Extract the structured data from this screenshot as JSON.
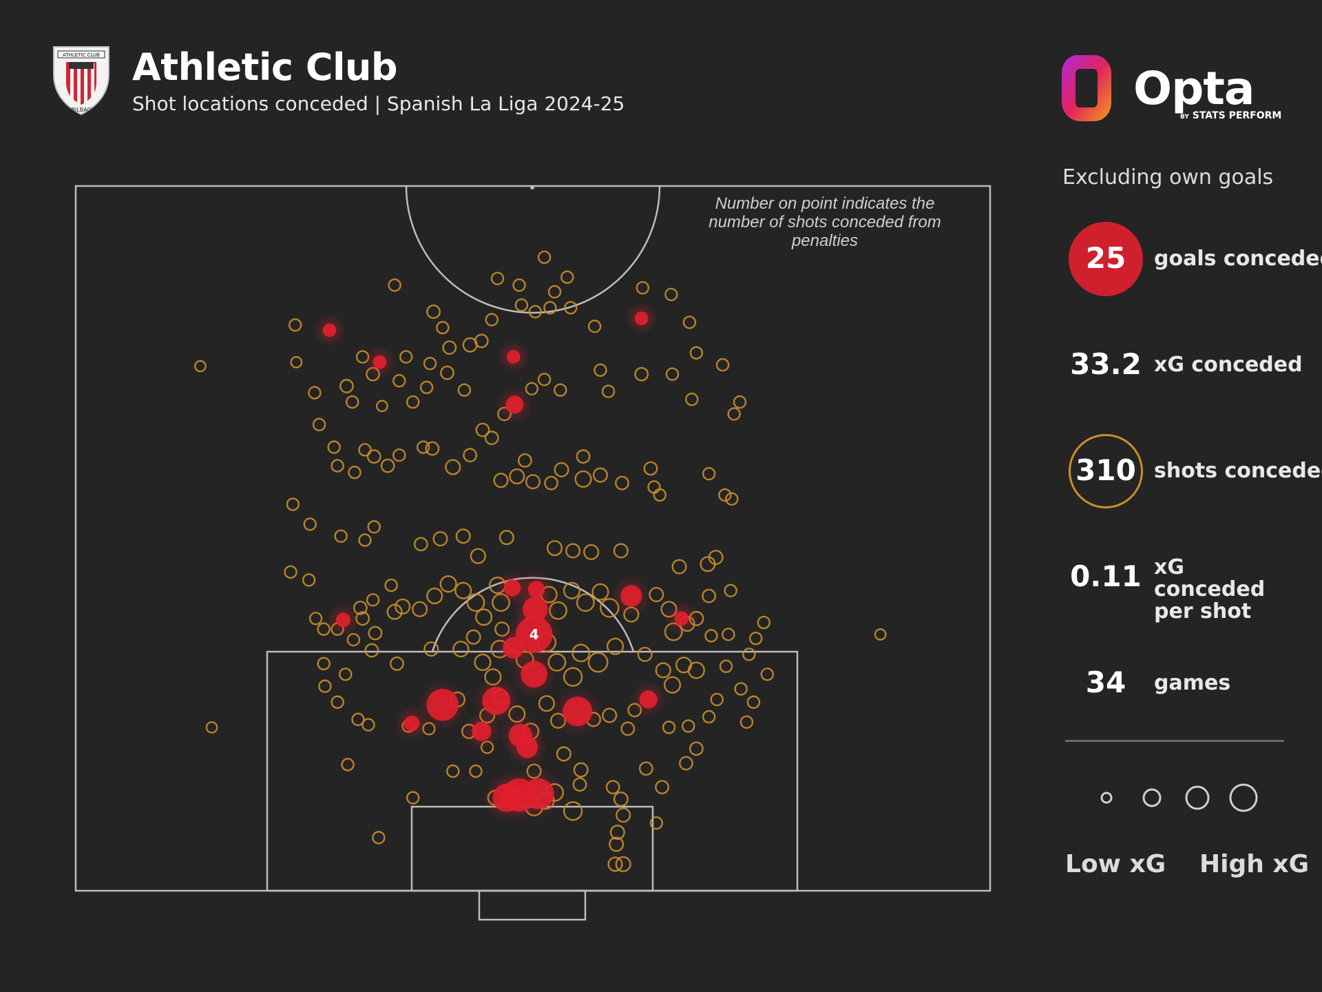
{
  "header": {
    "team": "Athletic Club",
    "subtitle": "Shot locations conceded | Spanish La Liga 2024-25",
    "crest_text_top": "ATHLETIC CLUB",
    "crest_text_bottom": "BILBAO"
  },
  "branding": {
    "logo": "Opta",
    "tag_prefix": "BY",
    "tag": "STATS PERFORM"
  },
  "note": "Number on point indicates the number of shots conceded from penalties",
  "stats": {
    "excluding": "Excluding own goals",
    "items": [
      {
        "value": "25",
        "label": "goals conceded"
      },
      {
        "value": "33.2",
        "label": "xG conceded"
      },
      {
        "value": "310",
        "label": "shots conceded"
      },
      {
        "value": "0.11",
        "label": "xG conceded per shot"
      },
      {
        "value": "34",
        "label": "games"
      }
    ]
  },
  "legend": {
    "low": "Low xG",
    "high": "High xG"
  },
  "colors": {
    "background": "#242424",
    "goal": "#e0202e",
    "shot": "#c98e2b",
    "pitch_line": "#bdbdbd"
  },
  "chart_data": {
    "type": "scatter",
    "x_axis": "pitch width (yards, 0-80)",
    "y_axis": "distance from goal line (yards)",
    "penalty_label": "4",
    "goals": [
      {
        "x": 22.2,
        "y": 42.2,
        "xg": 0.05
      },
      {
        "x": 26.6,
        "y": 39.8,
        "xg": 0.05
      },
      {
        "x": 38.3,
        "y": 40.2,
        "xg": 0.05
      },
      {
        "x": 38.4,
        "y": 36.6,
        "xg": 0.12
      },
      {
        "x": 49.5,
        "y": 43.1,
        "xg": 0.05
      },
      {
        "x": 38.2,
        "y": 22.8,
        "xg": 0.1
      },
      {
        "x": 40.2,
        "y": 21.2,
        "xg": 0.3
      },
      {
        "x": 40.1,
        "y": 19.3,
        "xg": 0.76
      },
      {
        "x": 38.3,
        "y": 18.3,
        "xg": 0.2
      },
      {
        "x": 40.1,
        "y": 16.3,
        "xg": 0.35
      },
      {
        "x": 32.1,
        "y": 14.0,
        "xg": 0.55
      },
      {
        "x": 36.8,
        "y": 14.3,
        "xg": 0.4
      },
      {
        "x": 43.9,
        "y": 13.5,
        "xg": 0.45
      },
      {
        "x": 35.5,
        "y": 12.0,
        "xg": 0.15
      },
      {
        "x": 38.9,
        "y": 11.7,
        "xg": 0.25
      },
      {
        "x": 29.4,
        "y": 12.6,
        "xg": 0.08
      },
      {
        "x": 48.6,
        "y": 22.2,
        "xg": 0.2
      },
      {
        "x": 53.0,
        "y": 20.5,
        "xg": 0.06
      },
      {
        "x": 50.1,
        "y": 14.4,
        "xg": 0.12
      },
      {
        "x": 23.4,
        "y": 20.4,
        "xg": 0.06
      },
      {
        "x": 38.8,
        "y": 7.2,
        "xg": 0.6
      },
      {
        "x": 40.5,
        "y": 7.3,
        "xg": 0.5
      },
      {
        "x": 37.7,
        "y": 7.0,
        "xg": 0.4
      },
      {
        "x": 40.3,
        "y": 22.7,
        "xg": 0.1
      },
      {
        "x": 39.5,
        "y": 10.8,
        "xg": 0.2
      }
    ],
    "shots": [
      {
        "x": 10.9,
        "y": 39.5,
        "xg": 0.02
      },
      {
        "x": 19.2,
        "y": 42.6,
        "xg": 0.03
      },
      {
        "x": 19.3,
        "y": 39.8,
        "xg": 0.02
      },
      {
        "x": 20.9,
        "y": 37.5,
        "xg": 0.03
      },
      {
        "x": 23.7,
        "y": 38.0,
        "xg": 0.04
      },
      {
        "x": 25.1,
        "y": 40.2,
        "xg": 0.03
      },
      {
        "x": 26.0,
        "y": 38.9,
        "xg": 0.04
      },
      {
        "x": 28.9,
        "y": 40.2,
        "xg": 0.03
      },
      {
        "x": 27.9,
        "y": 45.6,
        "xg": 0.03
      },
      {
        "x": 31.3,
        "y": 43.6,
        "xg": 0.04
      },
      {
        "x": 32.1,
        "y": 42.4,
        "xg": 0.03
      },
      {
        "x": 32.7,
        "y": 40.9,
        "xg": 0.04
      },
      {
        "x": 34.5,
        "y": 41.1,
        "xg": 0.05
      },
      {
        "x": 35.5,
        "y": 41.4,
        "xg": 0.04
      },
      {
        "x": 36.4,
        "y": 43.0,
        "xg": 0.03
      },
      {
        "x": 36.9,
        "y": 46.1,
        "xg": 0.03
      },
      {
        "x": 38.8,
        "y": 45.6,
        "xg": 0.03
      },
      {
        "x": 39.0,
        "y": 44.1,
        "xg": 0.03
      },
      {
        "x": 40.2,
        "y": 43.6,
        "xg": 0.03
      },
      {
        "x": 41.5,
        "y": 43.9,
        "xg": 0.03
      },
      {
        "x": 41.0,
        "y": 47.7,
        "xg": 0.03
      },
      {
        "x": 43.0,
        "y": 46.2,
        "xg": 0.03
      },
      {
        "x": 41.9,
        "y": 45.1,
        "xg": 0.03
      },
      {
        "x": 43.3,
        "y": 43.9,
        "xg": 0.03
      },
      {
        "x": 45.4,
        "y": 42.5,
        "xg": 0.03
      },
      {
        "x": 49.6,
        "y": 45.4,
        "xg": 0.03
      },
      {
        "x": 52.1,
        "y": 44.9,
        "xg": 0.03
      },
      {
        "x": 53.7,
        "y": 42.8,
        "xg": 0.03
      },
      {
        "x": 54.3,
        "y": 40.5,
        "xg": 0.03
      },
      {
        "x": 56.6,
        "y": 39.6,
        "xg": 0.03
      },
      {
        "x": 58.1,
        "y": 36.8,
        "xg": 0.03
      },
      {
        "x": 57.6,
        "y": 35.9,
        "xg": 0.03
      },
      {
        "x": 53.9,
        "y": 37.0,
        "xg": 0.03
      },
      {
        "x": 52.2,
        "y": 38.9,
        "xg": 0.03
      },
      {
        "x": 49.5,
        "y": 38.9,
        "xg": 0.04
      },
      {
        "x": 46.6,
        "y": 37.6,
        "xg": 0.03
      },
      {
        "x": 45.9,
        "y": 39.2,
        "xg": 0.03
      },
      {
        "x": 42.4,
        "y": 37.7,
        "xg": 0.03
      },
      {
        "x": 41.0,
        "y": 38.5,
        "xg": 0.03
      },
      {
        "x": 39.9,
        "y": 37.8,
        "xg": 0.03
      },
      {
        "x": 37.5,
        "y": 35.9,
        "xg": 0.04
      },
      {
        "x": 34.0,
        "y": 37.7,
        "xg": 0.03
      },
      {
        "x": 32.5,
        "y": 39.0,
        "xg": 0.04
      },
      {
        "x": 31.0,
        "y": 39.7,
        "xg": 0.03
      },
      {
        "x": 30.7,
        "y": 37.9,
        "xg": 0.03
      },
      {
        "x": 29.5,
        "y": 36.8,
        "xg": 0.03
      },
      {
        "x": 28.3,
        "y": 38.4,
        "xg": 0.03
      },
      {
        "x": 26.8,
        "y": 36.5,
        "xg": 0.02
      },
      {
        "x": 24.2,
        "y": 36.8,
        "xg": 0.03
      },
      {
        "x": 21.3,
        "y": 35.1,
        "xg": 0.03
      },
      {
        "x": 22.6,
        "y": 33.4,
        "xg": 0.03
      },
      {
        "x": 22.9,
        "y": 32.0,
        "xg": 0.03
      },
      {
        "x": 24.4,
        "y": 31.5,
        "xg": 0.03
      },
      {
        "x": 25.3,
        "y": 33.2,
        "xg": 0.03
      },
      {
        "x": 26.1,
        "y": 32.7,
        "xg": 0.04
      },
      {
        "x": 27.3,
        "y": 32.0,
        "xg": 0.04
      },
      {
        "x": 28.3,
        "y": 32.8,
        "xg": 0.03
      },
      {
        "x": 30.4,
        "y": 33.4,
        "xg": 0.03
      },
      {
        "x": 31.2,
        "y": 33.3,
        "xg": 0.04
      },
      {
        "x": 33.0,
        "y": 31.9,
        "xg": 0.06
      },
      {
        "x": 34.5,
        "y": 32.8,
        "xg": 0.04
      },
      {
        "x": 35.6,
        "y": 34.7,
        "xg": 0.04
      },
      {
        "x": 36.4,
        "y": 34.1,
        "xg": 0.04
      },
      {
        "x": 37.2,
        "y": 30.9,
        "xg": 0.05
      },
      {
        "x": 38.6,
        "y": 31.2,
        "xg": 0.06
      },
      {
        "x": 39.3,
        "y": 32.4,
        "xg": 0.04
      },
      {
        "x": 40.0,
        "y": 30.8,
        "xg": 0.05
      },
      {
        "x": 41.6,
        "y": 30.7,
        "xg": 0.04
      },
      {
        "x": 42.5,
        "y": 31.7,
        "xg": 0.05
      },
      {
        "x": 44.4,
        "y": 32.7,
        "xg": 0.04
      },
      {
        "x": 44.4,
        "y": 31.0,
        "xg": 0.08
      },
      {
        "x": 45.9,
        "y": 31.3,
        "xg": 0.05
      },
      {
        "x": 47.8,
        "y": 30.7,
        "xg": 0.04
      },
      {
        "x": 50.3,
        "y": 31.8,
        "xg": 0.04
      },
      {
        "x": 50.6,
        "y": 30.4,
        "xg": 0.03
      },
      {
        "x": 51.1,
        "y": 29.8,
        "xg": 0.03
      },
      {
        "x": 55.4,
        "y": 31.4,
        "xg": 0.03
      },
      {
        "x": 56.8,
        "y": 29.8,
        "xg": 0.03
      },
      {
        "x": 57.4,
        "y": 29.5,
        "xg": 0.03
      },
      {
        "x": 19.0,
        "y": 29.1,
        "xg": 0.03
      },
      {
        "x": 20.5,
        "y": 27.6,
        "xg": 0.03
      },
      {
        "x": 23.2,
        "y": 26.7,
        "xg": 0.03
      },
      {
        "x": 25.3,
        "y": 26.4,
        "xg": 0.03
      },
      {
        "x": 26.1,
        "y": 27.4,
        "xg": 0.03
      },
      {
        "x": 30.2,
        "y": 26.1,
        "xg": 0.04
      },
      {
        "x": 31.9,
        "y": 26.5,
        "xg": 0.05
      },
      {
        "x": 33.9,
        "y": 26.7,
        "xg": 0.05
      },
      {
        "x": 35.2,
        "y": 25.2,
        "xg": 0.06
      },
      {
        "x": 37.7,
        "y": 26.6,
        "xg": 0.05
      },
      {
        "x": 41.9,
        "y": 25.8,
        "xg": 0.06
      },
      {
        "x": 43.5,
        "y": 25.6,
        "xg": 0.05
      },
      {
        "x": 45.1,
        "y": 25.5,
        "xg": 0.06
      },
      {
        "x": 47.7,
        "y": 25.6,
        "xg": 0.05
      },
      {
        "x": 52.8,
        "y": 24.4,
        "xg": 0.05
      },
      {
        "x": 55.3,
        "y": 24.6,
        "xg": 0.06
      },
      {
        "x": 56.0,
        "y": 25.1,
        "xg": 0.05
      },
      {
        "x": 18.8,
        "y": 24.0,
        "xg": 0.03
      },
      {
        "x": 20.4,
        "y": 23.4,
        "xg": 0.03
      },
      {
        "x": 21.0,
        "y": 20.5,
        "xg": 0.03
      },
      {
        "x": 21.7,
        "y": 19.7,
        "xg": 0.03
      },
      {
        "x": 22.9,
        "y": 19.7,
        "xg": 0.03
      },
      {
        "x": 24.9,
        "y": 21.3,
        "xg": 0.04
      },
      {
        "x": 25.1,
        "y": 20.5,
        "xg": 0.04
      },
      {
        "x": 26.2,
        "y": 19.4,
        "xg": 0.04
      },
      {
        "x": 27.9,
        "y": 21.0,
        "xg": 0.06
      },
      {
        "x": 28.6,
        "y": 21.4,
        "xg": 0.06
      },
      {
        "x": 30.1,
        "y": 21.2,
        "xg": 0.06
      },
      {
        "x": 31.4,
        "y": 22.2,
        "xg": 0.07
      },
      {
        "x": 32.6,
        "y": 23.1,
        "xg": 0.08
      },
      {
        "x": 33.9,
        "y": 22.6,
        "xg": 0.08
      },
      {
        "x": 35.0,
        "y": 21.7,
        "xg": 0.1
      },
      {
        "x": 35.7,
        "y": 20.6,
        "xg": 0.08
      },
      {
        "x": 36.9,
        "y": 23.0,
        "xg": 0.08
      },
      {
        "x": 37.2,
        "y": 21.7,
        "xg": 0.1
      },
      {
        "x": 41.4,
        "y": 22.3,
        "xg": 0.08
      },
      {
        "x": 42.2,
        "y": 21.1,
        "xg": 0.1
      },
      {
        "x": 43.4,
        "y": 22.6,
        "xg": 0.08
      },
      {
        "x": 44.6,
        "y": 21.7,
        "xg": 0.1
      },
      {
        "x": 45.9,
        "y": 22.5,
        "xg": 0.08
      },
      {
        "x": 46.7,
        "y": 21.3,
        "xg": 0.12
      },
      {
        "x": 48.6,
        "y": 20.8,
        "xg": 0.06
      },
      {
        "x": 50.8,
        "y": 22.3,
        "xg": 0.05
      },
      {
        "x": 51.9,
        "y": 21.2,
        "xg": 0.07
      },
      {
        "x": 52.3,
        "y": 19.5,
        "xg": 0.1
      },
      {
        "x": 53.5,
        "y": 20.1,
        "xg": 0.06
      },
      {
        "x": 54.3,
        "y": 20.5,
        "xg": 0.05
      },
      {
        "x": 55.4,
        "y": 22.2,
        "xg": 0.04
      },
      {
        "x": 55.6,
        "y": 19.2,
        "xg": 0.03
      },
      {
        "x": 57.1,
        "y": 19.3,
        "xg": 0.03
      },
      {
        "x": 58.9,
        "y": 17.8,
        "xg": 0.03
      },
      {
        "x": 60.2,
        "y": 20.2,
        "xg": 0.03
      },
      {
        "x": 59.5,
        "y": 19.0,
        "xg": 0.03
      },
      {
        "x": 21.7,
        "y": 17.1,
        "xg": 0.03
      },
      {
        "x": 23.6,
        "y": 16.3,
        "xg": 0.03
      },
      {
        "x": 25.9,
        "y": 18.1,
        "xg": 0.04
      },
      {
        "x": 28.1,
        "y": 17.1,
        "xg": 0.04
      },
      {
        "x": 31.1,
        "y": 18.2,
        "xg": 0.05
      },
      {
        "x": 33.7,
        "y": 18.2,
        "xg": 0.07
      },
      {
        "x": 35.6,
        "y": 17.2,
        "xg": 0.08
      },
      {
        "x": 36.5,
        "y": 16.1,
        "xg": 0.08
      },
      {
        "x": 37.1,
        "y": 18.2,
        "xg": 0.1
      },
      {
        "x": 39.3,
        "y": 17.4,
        "xg": 0.1
      },
      {
        "x": 41.2,
        "y": 18.7,
        "xg": 0.12
      },
      {
        "x": 42.1,
        "y": 17.2,
        "xg": 0.1
      },
      {
        "x": 43.5,
        "y": 16.1,
        "xg": 0.12
      },
      {
        "x": 44.2,
        "y": 17.9,
        "xg": 0.1
      },
      {
        "x": 45.7,
        "y": 17.2,
        "xg": 0.14
      },
      {
        "x": 47.2,
        "y": 18.4,
        "xg": 0.08
      },
      {
        "x": 49.8,
        "y": 17.8,
        "xg": 0.05
      },
      {
        "x": 51.4,
        "y": 16.6,
        "xg": 0.06
      },
      {
        "x": 52.2,
        "y": 15.5,
        "xg": 0.08
      },
      {
        "x": 53.2,
        "y": 17.0,
        "xg": 0.07
      },
      {
        "x": 54.3,
        "y": 16.6,
        "xg": 0.08
      },
      {
        "x": 56.9,
        "y": 16.9,
        "xg": 0.03
      },
      {
        "x": 58.2,
        "y": 15.2,
        "xg": 0.03
      },
      {
        "x": 59.3,
        "y": 14.2,
        "xg": 0.03
      },
      {
        "x": 21.8,
        "y": 15.4,
        "xg": 0.03
      },
      {
        "x": 22.9,
        "y": 14.2,
        "xg": 0.03
      },
      {
        "x": 24.7,
        "y": 12.9,
        "xg": 0.03
      },
      {
        "x": 25.6,
        "y": 12.5,
        "xg": 0.03
      },
      {
        "x": 29.1,
        "y": 12.4,
        "xg": 0.03
      },
      {
        "x": 33.4,
        "y": 14.4,
        "xg": 0.06
      },
      {
        "x": 34.4,
        "y": 12.0,
        "xg": 0.05
      },
      {
        "x": 36.0,
        "y": 13.2,
        "xg": 0.06
      },
      {
        "x": 37.2,
        "y": 14.6,
        "xg": 0.06
      },
      {
        "x": 38.6,
        "y": 13.3,
        "xg": 0.08
      },
      {
        "x": 39.8,
        "y": 12.0,
        "xg": 0.08
      },
      {
        "x": 41.2,
        "y": 14.1,
        "xg": 0.07
      },
      {
        "x": 42.2,
        "y": 12.8,
        "xg": 0.06
      },
      {
        "x": 45.3,
        "y": 12.9,
        "xg": 0.05
      },
      {
        "x": 46.7,
        "y": 13.2,
        "xg": 0.05
      },
      {
        "x": 48.3,
        "y": 12.2,
        "xg": 0.04
      },
      {
        "x": 48.9,
        "y": 13.6,
        "xg": 0.04
      },
      {
        "x": 51.9,
        "y": 12.3,
        "xg": 0.03
      },
      {
        "x": 53.6,
        "y": 12.4,
        "xg": 0.03
      },
      {
        "x": 55.4,
        "y": 13.1,
        "xg": 0.03
      },
      {
        "x": 54.3,
        "y": 10.7,
        "xg": 0.04
      },
      {
        "x": 53.4,
        "y": 9.6,
        "xg": 0.04
      },
      {
        "x": 23.8,
        "y": 9.5,
        "xg": 0.03
      },
      {
        "x": 29.5,
        "y": 7.0,
        "xg": 0.03
      },
      {
        "x": 36.7,
        "y": 7.0,
        "xg": 0.06
      },
      {
        "x": 40.1,
        "y": 6.3,
        "xg": 0.1
      },
      {
        "x": 41.1,
        "y": 6.8,
        "xg": 0.1
      },
      {
        "x": 41.9,
        "y": 7.4,
        "xg": 0.1
      },
      {
        "x": 43.5,
        "y": 6.0,
        "xg": 0.12
      },
      {
        "x": 44.1,
        "y": 8.0,
        "xg": 0.04
      },
      {
        "x": 47.0,
        "y": 7.8,
        "xg": 0.04
      },
      {
        "x": 47.7,
        "y": 6.9,
        "xg": 0.05
      },
      {
        "x": 47.9,
        "y": 5.7,
        "xg": 0.05
      },
      {
        "x": 47.4,
        "y": 4.4,
        "xg": 0.05
      },
      {
        "x": 47.9,
        "y": 2.0,
        "xg": 0.06
      },
      {
        "x": 47.2,
        "y": 2.0,
        "xg": 0.05
      },
      {
        "x": 47.3,
        "y": 3.5,
        "xg": 0.05
      },
      {
        "x": 49.9,
        "y": 9.2,
        "xg": 0.04
      },
      {
        "x": 51.3,
        "y": 7.8,
        "xg": 0.04
      },
      {
        "x": 50.8,
        "y": 5.1,
        "xg": 0.03
      },
      {
        "x": 26.5,
        "y": 4.0,
        "xg": 0.03
      },
      {
        "x": 11.9,
        "y": 12.3,
        "xg": 0.02
      },
      {
        "x": 70.4,
        "y": 19.3,
        "xg": 0.02
      },
      {
        "x": 44.2,
        "y": 9.1,
        "xg": 0.05
      },
      {
        "x": 33.0,
        "y": 9.0,
        "xg": 0.03
      },
      {
        "x": 30.9,
        "y": 12.2,
        "xg": 0.03
      },
      {
        "x": 35.0,
        "y": 9.0,
        "xg": 0.03
      },
      {
        "x": 36.0,
        "y": 10.8,
        "xg": 0.03
      },
      {
        "x": 24.3,
        "y": 18.9,
        "xg": 0.03
      },
      {
        "x": 26.0,
        "y": 21.9,
        "xg": 0.03
      },
      {
        "x": 27.6,
        "y": 23.0,
        "xg": 0.03
      },
      {
        "x": 40.1,
        "y": 9.0,
        "xg": 0.05
      },
      {
        "x": 42.7,
        "y": 10.3,
        "xg": 0.05
      },
      {
        "x": 37.3,
        "y": 19.7,
        "xg": 0.05
      },
      {
        "x": 34.8,
        "y": 19.1,
        "xg": 0.05
      },
      {
        "x": 58.7,
        "y": 12.7,
        "xg": 0.03
      },
      {
        "x": 60.5,
        "y": 16.3,
        "xg": 0.03
      },
      {
        "x": 56.1,
        "y": 14.4,
        "xg": 0.03
      },
      {
        "x": 57.3,
        "y": 22.6,
        "xg": 0.03
      }
    ]
  }
}
